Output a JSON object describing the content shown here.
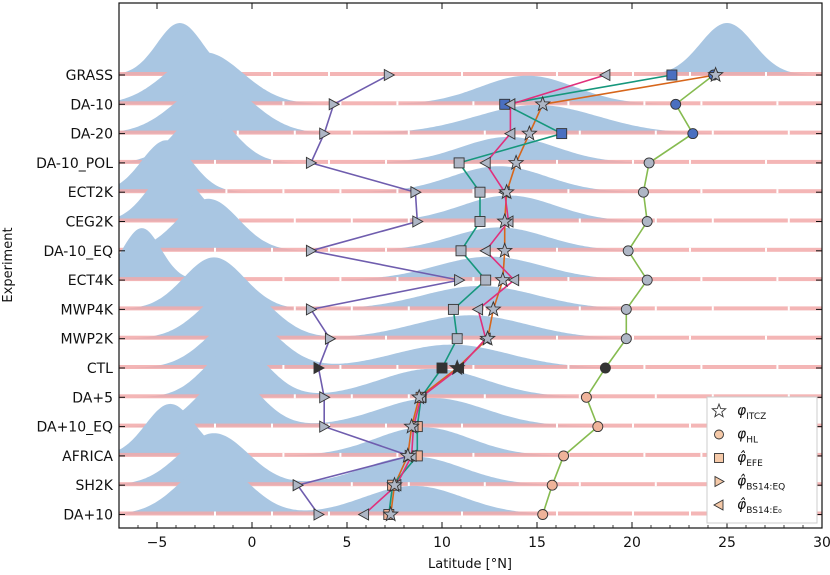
{
  "chart_data": {
    "type": "ridgeline+line",
    "xlabel": "Latitude [°N]",
    "ylabel": "Experiment",
    "xlim": [
      -7,
      30
    ],
    "xticks": [
      -5,
      0,
      5,
      10,
      15,
      20,
      25,
      30
    ],
    "experiments": [
      "GRASS",
      "DA-10",
      "DA-20",
      "DA-10_POL",
      "ECT2K",
      "CEG2K",
      "DA-10_EQ",
      "ECT4K",
      "MWP4K",
      "MWP2K",
      "CTL",
      "DA+5",
      "DA+10_EQ",
      "AFRICA",
      "SH2K",
      "DA+10"
    ],
    "ridges": [
      {
        "dry_center": -3.8,
        "dry_width": 1.2,
        "wet_center": 25.0,
        "wet_width": 1.4,
        "wet_height": 1.0
      },
      {
        "dry_center": -2.5,
        "dry_width": 2.0,
        "wet_center": 14.5,
        "wet_width": 2.5,
        "wet_height": 0.55
      },
      {
        "dry_center": -2.0,
        "dry_width": 2.0,
        "wet_center": 15.0,
        "wet_width": 3.2,
        "wet_height": 0.55
      },
      {
        "dry_center": -2.5,
        "dry_width": 1.5,
        "wet_center": 13.5,
        "wet_width": 2.5,
        "wet_height": 0.5
      },
      {
        "dry_center": -4.5,
        "dry_width": 1.3,
        "wet_center": 13.0,
        "wet_width": 2.5,
        "wet_height": 0.5
      },
      {
        "dry_center": -4.2,
        "dry_width": 1.3,
        "wet_center": 13.5,
        "wet_width": 2.5,
        "wet_height": 0.5
      },
      {
        "dry_center": -2.3,
        "dry_width": 1.6,
        "wet_center": 13.0,
        "wet_width": 2.5,
        "wet_height": 0.45
      },
      {
        "dry_center": -5.8,
        "dry_width": 1.0,
        "wet_center": 12.5,
        "wet_width": 2.8,
        "wet_height": 0.45
      },
      {
        "dry_center": -2.0,
        "dry_width": 1.6,
        "wet_center": 12.0,
        "wet_width": 3.0,
        "wet_height": 0.45
      },
      {
        "dry_center": -0.8,
        "dry_width": 1.8,
        "wet_center": 11.5,
        "wet_width": 3.0,
        "wet_height": 0.45
      },
      {
        "dry_center": -0.5,
        "dry_width": 1.8,
        "wet_center": 10.5,
        "wet_width": 3.0,
        "wet_height": 0.45
      },
      {
        "dry_center": -0.8,
        "dry_width": 1.6,
        "wet_center": 9.5,
        "wet_width": 2.8,
        "wet_height": 0.55
      },
      {
        "dry_center": -1.2,
        "dry_width": 1.6,
        "wet_center": 9.5,
        "wet_width": 2.8,
        "wet_height": 0.55
      },
      {
        "dry_center": -4.3,
        "dry_width": 1.3,
        "wet_center": 9.0,
        "wet_width": 2.5,
        "wet_height": 0.55
      },
      {
        "dry_center": -2.0,
        "dry_width": 1.8,
        "wet_center": 8.5,
        "wet_width": 2.6,
        "wet_height": 0.55
      },
      {
        "dry_center": -2.0,
        "dry_width": 1.8,
        "wet_center": 8.5,
        "wet_width": 2.6,
        "wet_height": 0.55
      }
    ],
    "series": [
      {
        "name": "φ_ITCZ",
        "marker": "star",
        "line_color": "#d7661b",
        "marker_fill": "#aeb6c5",
        "values": [
          24.4,
          15.3,
          14.6,
          13.9,
          13.4,
          13.3,
          13.3,
          13.2,
          12.7,
          12.4,
          10.8,
          8.8,
          8.4,
          8.2,
          7.5,
          7.3
        ]
      },
      {
        "name": "φ_HL",
        "marker": "circle",
        "line_color": "#86bb50",
        "marker_fill": "#aeb6c5",
        "values": [
          24.3,
          22.3,
          23.2,
          20.9,
          20.6,
          20.8,
          19.8,
          20.8,
          19.7,
          19.7,
          18.6,
          17.6,
          18.2,
          16.4,
          15.8,
          15.3
        ]
      },
      {
        "name": "φ̂_EFE",
        "marker": "square",
        "line_color": "#16977c",
        "marker_fill": "#aeb6c5",
        "values": [
          22.1,
          13.3,
          16.3,
          10.9,
          12.0,
          12.0,
          11.0,
          12.3,
          10.6,
          10.8,
          10.0,
          8.9,
          8.7,
          8.7,
          7.4,
          7.2
        ]
      },
      {
        "name": "φ̂_BS14:EQ",
        "marker": "tri-right",
        "line_color": "#6f5dae",
        "marker_fill": "#aeb6c5",
        "values": [
          7.2,
          4.3,
          3.8,
          3.1,
          8.6,
          8.7,
          3.1,
          10.9,
          3.1,
          4.1,
          3.5,
          3.8,
          3.8,
          8.3,
          2.4,
          3.5
        ]
      },
      {
        "name": "φ̂_BS14:E₀",
        "marker": "tri-left",
        "line_color": "#e0307c",
        "marker_fill": "#aeb6c5",
        "values": [
          18.6,
          13.6,
          13.6,
          12.3,
          13.3,
          13.5,
          12.3,
          13.8,
          11.9,
          12.3,
          10.9,
          8.9,
          8.5,
          8.4,
          7.6,
          5.9
        ]
      }
    ],
    "legend": {
      "position": "lower-right",
      "entries": [
        {
          "sym": "star",
          "main": "φ",
          "sub": "ITCZ",
          "hat": false
        },
        {
          "sym": "circle",
          "main": "φ",
          "sub": "HL",
          "hat": false
        },
        {
          "sym": "square",
          "main": "φ",
          "sub": "EFE",
          "hat": true
        },
        {
          "sym": "tri-right",
          "main": "φ",
          "sub": "BS14:EQ",
          "hat": true
        },
        {
          "sym": "tri-left",
          "main": "φ",
          "sub": "BS14:E₀",
          "hat": true
        }
      ]
    },
    "colors": {
      "dry": "#a9c6e2",
      "wet_base": "#f2a9a9",
      "legend_marker": "#f5c9a8"
    }
  }
}
